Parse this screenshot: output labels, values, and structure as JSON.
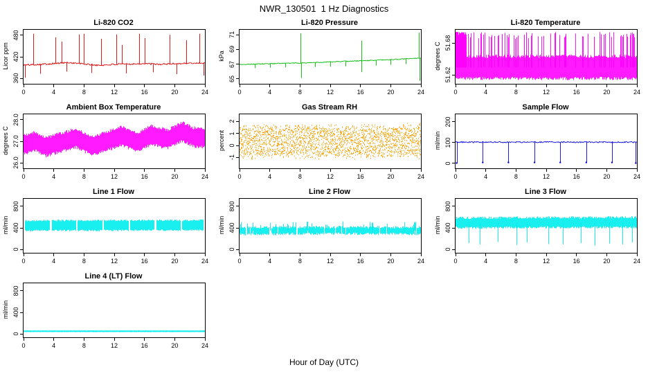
{
  "page": {
    "title": "NWR_130501  1 Hz Diagnostics",
    "xlabel": "Hour of Day (UTC)"
  },
  "chart_data": [
    {
      "id": "li820-co2",
      "type": "line",
      "title": "Li-820 CO2",
      "ylabel": "Licor ppm",
      "color": "#dd0000",
      "seed": 101,
      "grid": false,
      "legend": false,
      "xlim": [
        0,
        24
      ],
      "xticks": [
        0,
        4,
        8,
        12,
        16,
        20,
        24
      ],
      "ylim": [
        345,
        495
      ],
      "yticks": [
        360,
        420,
        480
      ],
      "ytick_labels": [
        "360",
        "420",
        "480"
      ],
      "signal": {
        "style": "line",
        "noise": 2.2,
        "baseline": [
          [
            0,
            397
          ],
          [
            3,
            400
          ],
          [
            6,
            404
          ],
          [
            8,
            400
          ],
          [
            10,
            396
          ],
          [
            12,
            399
          ],
          [
            16,
            401
          ],
          [
            18,
            399
          ],
          [
            20,
            401
          ],
          [
            24,
            403
          ]
        ],
        "spikes_up": [
          [
            1.3,
            484
          ],
          [
            4.2,
            474
          ],
          [
            5.0,
            462
          ],
          [
            7.3,
            482
          ],
          [
            8.0,
            484
          ],
          [
            10.3,
            470
          ],
          [
            12.3,
            482
          ],
          [
            13.0,
            453
          ],
          [
            15.3,
            484
          ],
          [
            16.0,
            472
          ],
          [
            19.3,
            481
          ],
          [
            21.5,
            466
          ],
          [
            23.3,
            484
          ]
        ],
        "spikes_down": [
          [
            0.15,
            362
          ],
          [
            2.2,
            373
          ],
          [
            5.7,
            379
          ],
          [
            9.0,
            375
          ],
          [
            13.6,
            374
          ],
          [
            17.1,
            377
          ],
          [
            20.2,
            372
          ],
          [
            23.8,
            368
          ]
        ]
      }
    },
    {
      "id": "li820-pressure",
      "type": "line",
      "title": "Li-820 Pressure",
      "ylabel": "kPa",
      "color": "#00bb00",
      "seed": 202,
      "grid": false,
      "legend": false,
      "xlim": [
        0,
        24
      ],
      "xticks": [
        0,
        4,
        8,
        12,
        16,
        20,
        24
      ],
      "ylim": [
        64.3,
        71.7
      ],
      "yticks": [
        65,
        67,
        69,
        71
      ],
      "ytick_labels": [
        "65",
        "67",
        "69",
        "71"
      ],
      "signal": {
        "style": "line",
        "noise": 0.06,
        "baseline": [
          [
            0,
            66.95
          ],
          [
            4,
            67.05
          ],
          [
            8,
            67.15
          ],
          [
            12,
            67.3
          ],
          [
            16,
            67.45
          ],
          [
            20,
            67.6
          ],
          [
            24,
            67.85
          ]
        ],
        "spikes_up": [
          [
            8.1,
            71.2
          ],
          [
            16.1,
            70.2
          ],
          [
            23.75,
            71.3
          ]
        ],
        "spikes_down": [
          [
            2.0,
            66.45
          ],
          [
            4.0,
            66.5
          ],
          [
            6.0,
            66.55
          ],
          [
            8.15,
            65.1
          ],
          [
            10.0,
            66.6
          ],
          [
            12.0,
            66.65
          ],
          [
            14.0,
            66.7
          ],
          [
            16.15,
            65.9
          ],
          [
            18.0,
            66.8
          ],
          [
            20.0,
            66.9
          ],
          [
            22.0,
            67.0
          ],
          [
            23.8,
            64.7
          ]
        ]
      }
    },
    {
      "id": "li820-temperature",
      "type": "line",
      "title": "Li-820 Temperature",
      "ylabel": "degrees C",
      "color": "#ff00ff",
      "seed": 303,
      "grid": false,
      "legend": false,
      "xlim": [
        0,
        24
      ],
      "xticks": [
        0,
        4,
        8,
        12,
        16,
        20,
        24
      ],
      "ylim": [
        51.603,
        51.705
      ],
      "yticks": [
        51.62,
        51.68
      ],
      "ytick_labels": [
        "51.62",
        "51.68"
      ],
      "signal": {
        "style": "band",
        "amp": 0.024,
        "ragged": 0.25,
        "baseline": [
          [
            0,
            51.634
          ],
          [
            24,
            51.634
          ]
        ],
        "rand_spikes": {
          "count": 85,
          "dense_count": 110,
          "dense_range": [
            0,
            1.4
          ],
          "ymin": 51.688,
          "ymax": 51.701
        }
      }
    },
    {
      "id": "ambient-box-temperature",
      "type": "line",
      "title": "Ambient Box Temperature",
      "ylabel": "degrees C",
      "color": "#ff00ff",
      "seed": 404,
      "grid": false,
      "legend": false,
      "xlim": [
        0,
        24
      ],
      "xticks": [
        0,
        4,
        8,
        12,
        16,
        20,
        24
      ],
      "ylim": [
        25.75,
        28.25
      ],
      "yticks": [
        26,
        27,
        28
      ],
      "ytick_labels": [
        "26.0",
        "27.0",
        "28.0"
      ],
      "signal": {
        "style": "band",
        "amp": 0.5,
        "ragged": 0.3,
        "baseline": [
          [
            0,
            26.85
          ],
          [
            1.5,
            27.0
          ],
          [
            3,
            26.75
          ],
          [
            5,
            26.95
          ],
          [
            7,
            27.15
          ],
          [
            9,
            26.8
          ],
          [
            11,
            27.0
          ],
          [
            13,
            27.25
          ],
          [
            15,
            26.95
          ],
          [
            17,
            27.3
          ],
          [
            19,
            27.1
          ],
          [
            21,
            27.45
          ],
          [
            22.5,
            27.2
          ],
          [
            24,
            27.15
          ]
        ]
      }
    },
    {
      "id": "gas-stream-rh",
      "type": "line",
      "title": "Gas Stream RH",
      "ylabel": "percent",
      "color": "#ffa000",
      "seed": 505,
      "grid": false,
      "legend": false,
      "xlim": [
        0,
        24
      ],
      "xticks": [
        0,
        4,
        8,
        12,
        16,
        20,
        24
      ],
      "ylim": [
        -1.9,
        2.6
      ],
      "yticks": [
        -1,
        0,
        1,
        2
      ],
      "ytick_labels": [
        "-1",
        "0",
        "1",
        "2"
      ],
      "signal": {
        "style": "band",
        "amp": 1.5,
        "ragged": 0.3,
        "texture": "dots",
        "dots_per_col": 9,
        "baseline": [
          [
            0,
            0.35
          ],
          [
            24,
            0.4
          ]
        ]
      }
    },
    {
      "id": "sample-flow",
      "type": "line",
      "title": "Sample Flow",
      "ylabel": "ml/min",
      "color": "#0000dd",
      "seed": 606,
      "grid": false,
      "legend": false,
      "xlim": [
        0,
        24
      ],
      "xticks": [
        0,
        4,
        8,
        12,
        16,
        20,
        24
      ],
      "ylim": [
        -25,
        235
      ],
      "yticks": [
        0,
        100,
        200
      ],
      "ytick_labels": [
        "0",
        "100",
        "200"
      ],
      "signal": {
        "style": "line",
        "noise": 3,
        "dots": true,
        "baseline": [
          [
            0,
            101
          ],
          [
            24,
            101
          ]
        ],
        "spikes_down": [
          [
            0.15,
            0
          ],
          [
            3.6,
            3
          ],
          [
            7.0,
            3
          ],
          [
            10.45,
            3
          ],
          [
            13.85,
            3
          ],
          [
            17.3,
            3
          ],
          [
            20.7,
            3
          ],
          [
            23.85,
            0
          ]
        ]
      }
    },
    {
      "id": "line-1-flow",
      "type": "line",
      "title": "Line 1 Flow",
      "ylabel": "ml/min",
      "color": "#00eeee",
      "seed": 707,
      "grid": false,
      "legend": false,
      "xlim": [
        0,
        24
      ],
      "xticks": [
        0,
        4,
        8,
        12,
        16,
        20,
        24
      ],
      "ylim": [
        -60,
        940
      ],
      "yticks": [
        0,
        400,
        800
      ],
      "ytick_labels": [
        "0",
        "400",
        "800"
      ],
      "signal": {
        "style": "band",
        "amp": 108,
        "ragged": 0.3,
        "baseline": [
          [
            0,
            445
          ],
          [
            24,
            450
          ]
        ],
        "gaps": [
          [
            0,
            0.22
          ],
          [
            3.5,
            3.72
          ],
          [
            6.95,
            7.17
          ],
          [
            10.42,
            10.64
          ],
          [
            13.88,
            14.1
          ],
          [
            17.33,
            17.55
          ],
          [
            20.78,
            21.0
          ],
          [
            23.8,
            24
          ]
        ]
      }
    },
    {
      "id": "line-2-flow",
      "type": "line",
      "title": "Line 2 Flow",
      "ylabel": "ml/min",
      "color": "#00eeee",
      "seed": 808,
      "grid": false,
      "legend": false,
      "xlim": [
        0,
        24
      ],
      "xticks": [
        0,
        4,
        8,
        12,
        16,
        20,
        24
      ],
      "ylim": [
        -60,
        940
      ],
      "yticks": [
        0,
        400,
        800
      ],
      "ytick_labels": [
        "0",
        "400",
        "800"
      ],
      "signal": {
        "style": "band",
        "amp": 85,
        "ragged": 0.55,
        "skip_prob": 0.08,
        "baseline": [
          [
            0,
            345
          ],
          [
            12,
            355
          ],
          [
            24,
            350
          ]
        ],
        "rand_spikes": {
          "count": 30,
          "ymin": 450,
          "ymax": 530
        }
      }
    },
    {
      "id": "line-3-flow",
      "type": "line",
      "title": "Line 3 Flow",
      "ylabel": "ml/min",
      "color": "#00eeee",
      "seed": 909,
      "grid": false,
      "legend": false,
      "xlim": [
        0,
        24
      ],
      "xticks": [
        0,
        4,
        8,
        12,
        16,
        20,
        24
      ],
      "ylim": [
        -60,
        940
      ],
      "yticks": [
        0,
        400,
        800
      ],
      "ytick_labels": [
        "0",
        "400",
        "800"
      ],
      "signal": {
        "style": "band",
        "amp": 115,
        "ragged": 0.4,
        "baseline": [
          [
            0,
            495
          ],
          [
            24,
            505
          ]
        ],
        "spikes_down": [
          [
            1.7,
            120
          ],
          [
            3.2,
            95
          ],
          [
            5.6,
            140
          ],
          [
            8.1,
            85
          ],
          [
            9.4,
            130
          ],
          [
            12.3,
            100
          ],
          [
            14.2,
            95
          ],
          [
            16.6,
            120
          ],
          [
            18.4,
            75
          ],
          [
            20.3,
            110
          ],
          [
            22.1,
            95
          ],
          [
            23.4,
            130
          ]
        ]
      }
    },
    {
      "id": "line-4-lt-flow",
      "type": "line",
      "title": "Line 4 (LT) Flow",
      "ylabel": "ml/min",
      "color": "#00eeee",
      "seed": 1010,
      "grid": false,
      "legend": false,
      "xlim": [
        0,
        24
      ],
      "xticks": [
        0,
        4,
        8,
        12,
        16,
        20,
        24
      ],
      "ylim": [
        -60,
        940
      ],
      "yticks": [
        0,
        400,
        800
      ],
      "ytick_labels": [
        "0",
        "400",
        "800"
      ],
      "signal": {
        "style": "band",
        "amp": 16,
        "ragged": 0.2,
        "baseline": [
          [
            0,
            52
          ],
          [
            24,
            52
          ]
        ]
      }
    }
  ]
}
